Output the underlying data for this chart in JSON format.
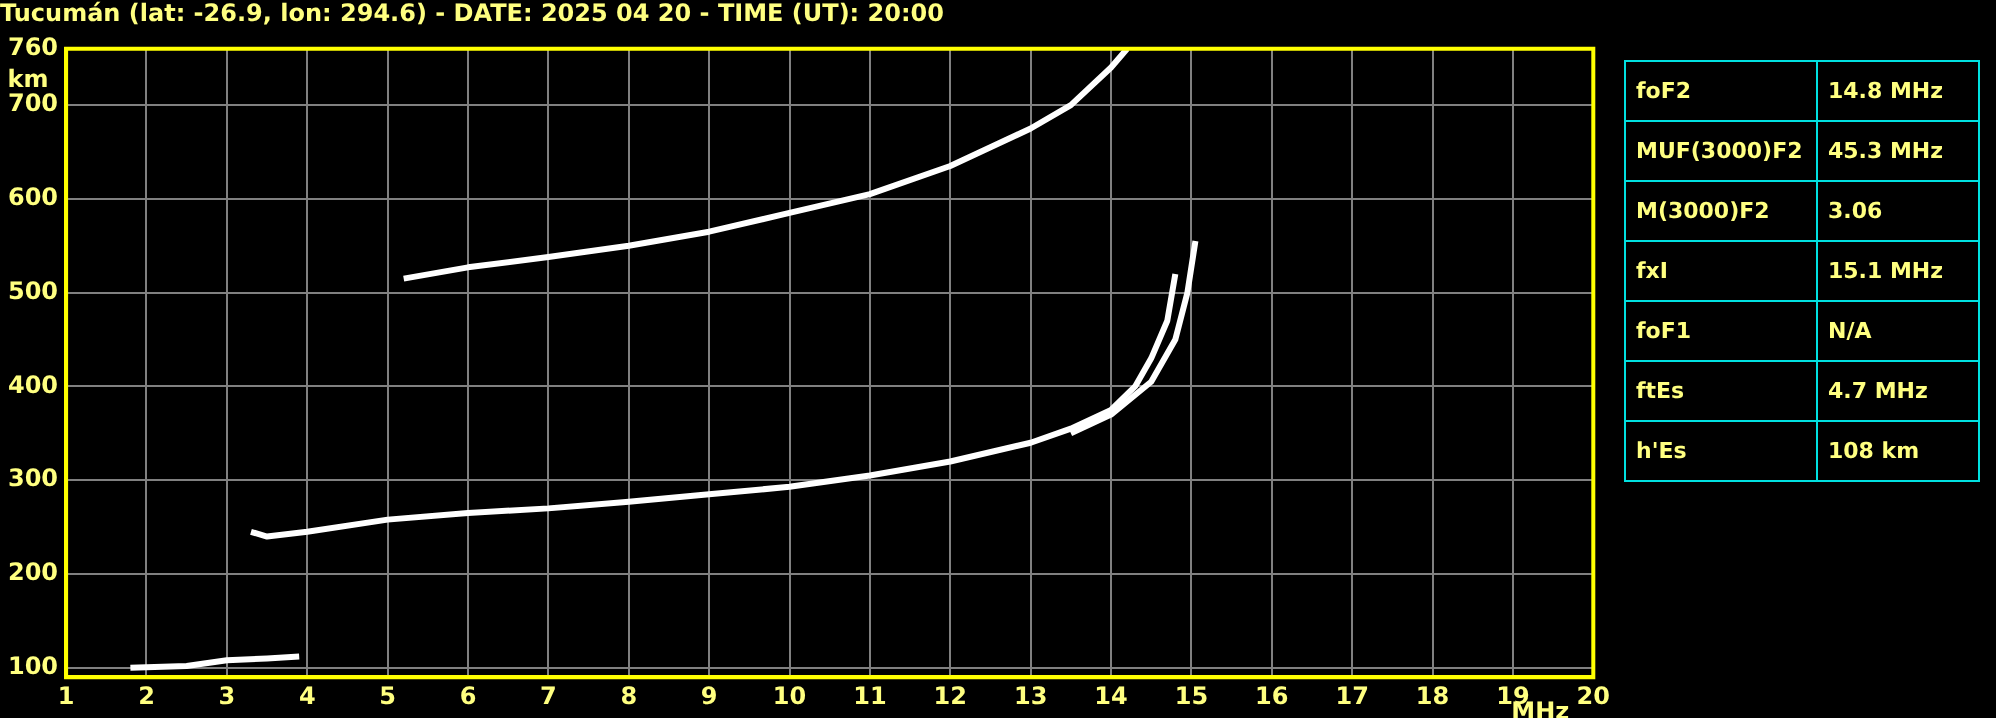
{
  "chart_data": {
    "type": "line",
    "title": "Tucumán (lat: -26.9, lon: 294.6) - DATE: 2025 04 20 - TIME (UT): 20:00",
    "xlabel": "MHz",
    "ylabel": "km",
    "xlim": [
      1,
      20
    ],
    "xticks": [
      1,
      2,
      3,
      4,
      5,
      6,
      7,
      8,
      9,
      10,
      11,
      12,
      13,
      14,
      15,
      16,
      17,
      18,
      19,
      20
    ],
    "ylim": [
      90,
      760
    ],
    "yticks": [
      100,
      200,
      300,
      400,
      500,
      600,
      700,
      760
    ],
    "grid": true,
    "marker": "none",
    "line_style": "solid",
    "series": [
      {
        "color": "#ffffff",
        "x": [
          3.3,
          3.5,
          4,
          5,
          6,
          7,
          8,
          9,
          10,
          11,
          12,
          13,
          13.5,
          14,
          14.3,
          14.5,
          14.7,
          14.8
        ],
        "values": [
          245,
          240,
          245,
          258,
          265,
          270,
          277,
          285,
          293,
          305,
          320,
          340,
          355,
          375,
          400,
          430,
          470,
          520
        ]
      },
      {
        "color": "#ffffff",
        "x": [
          13.5,
          14,
          14.5,
          14.8,
          14.95,
          15.05
        ],
        "values": [
          350,
          370,
          405,
          450,
          500,
          555
        ]
      },
      {
        "color": "#ffffff",
        "x": [
          5.2,
          6,
          7,
          8,
          9,
          10,
          11,
          12,
          13,
          13.5,
          14,
          14.2
        ],
        "values": [
          515,
          527,
          538,
          550,
          565,
          585,
          605,
          635,
          675,
          700,
          740,
          760
        ]
      },
      {
        "color": "#ffffff",
        "x": [
          1.8,
          2.5,
          3,
          3.5,
          3.9
        ],
        "values": [
          100,
          102,
          108,
          110,
          112
        ]
      }
    ],
    "annotations": [
      "foF2",
      "14.8 MHz",
      "MUF(3000)F2",
      "45.3 MHz",
      "M(3000)F2",
      "3.06",
      "fxI",
      "15.1 MHz",
      "foF1",
      "N/A",
      "ftEs",
      "4.7 MHz",
      "h'Es",
      "108 km"
    ]
  }
}
